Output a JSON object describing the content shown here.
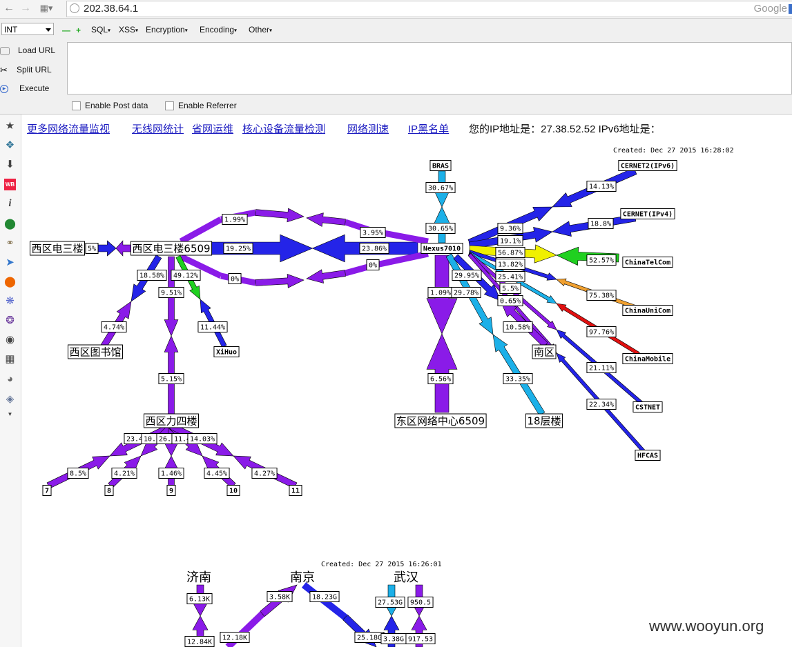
{
  "browser": {
    "url": "202.38.64.1",
    "search_placeholder": "Google",
    "back_icon": "back-arrow-icon",
    "forward_icon": "forward-arrow-icon"
  },
  "hackbar": {
    "select_value": "INT",
    "menus": [
      "SQL",
      "XSS",
      "Encryption",
      "Encoding",
      "Other"
    ],
    "buttons": [
      "Load URL",
      "Split URL",
      "Execute"
    ],
    "checks": [
      "Enable Post data",
      "Enable Referrer"
    ]
  },
  "links": [
    "更多网络流量监视",
    "无线网统计",
    "省网运维",
    "核心设备流量检测",
    "网络测速",
    "IP黑名单"
  ],
  "ip_info": "您的IP地址是：27.38.52.52 IPv6地址是：",
  "graph1": {
    "created": "Created: Dec 27 2015 16:28:02",
    "nodes": [
      "西区电三楼",
      "西区电三楼6509",
      "Nexus7010",
      "BRAS",
      "CERNET2(IPv6)",
      "CERNET(IPv4)",
      "ChinaTelCom",
      "ChinaUniCom",
      "ChinaMobile",
      "CSTNET",
      "HFCAS",
      "西区图书馆",
      "XiHuo",
      "西区力四楼",
      "东区网络中心6509",
      "18层楼",
      "南区",
      "7",
      "8",
      "9",
      "10",
      "11"
    ],
    "labels": [
      "5%",
      "19.25%",
      "23.86%",
      "1.99%",
      "3.95%",
      "0%",
      "0%",
      "30.67%",
      "30.65%",
      "14.13%",
      "18.8%",
      "9.36%",
      "19.1%",
      "56.87%",
      "13.82%",
      "25.41%",
      "5.5%",
      "0.65%",
      "52.57%",
      "75.38%",
      "97.76%",
      "21.11%",
      "22.34%",
      "18.58%",
      "49.12%",
      "9.51%",
      "4.74%",
      "11.44%",
      "5.15%",
      "1.09%",
      "29.78%",
      "29.95%",
      "10.58%",
      "6.56%",
      "33.35%",
      "23.4",
      "10.2",
      "26.2",
      "11.4",
      "14.03%",
      "8.5%",
      "4.21%",
      "1.46%",
      "4.45%",
      "4.27%"
    ]
  },
  "graph2": {
    "created": "Created: Dec 27 2015 16:26:01",
    "nodes": [
      "济南",
      "南京",
      "武汉"
    ],
    "labels": [
      "6.13K",
      "12.84K",
      "3.58K",
      "12.18K",
      "18.23G",
      "25.18G",
      "27.53G",
      "950.5",
      "3.38G",
      "917.53"
    ]
  },
  "watermark": "www.wooyun.org",
  "colors": {
    "purple": "#8a1be8",
    "blue": "#2424e8",
    "cyan": "#1cb0e8",
    "yellow": "#f0f000",
    "green": "#20d020",
    "orange": "#f0a030",
    "red": "#e01010"
  }
}
